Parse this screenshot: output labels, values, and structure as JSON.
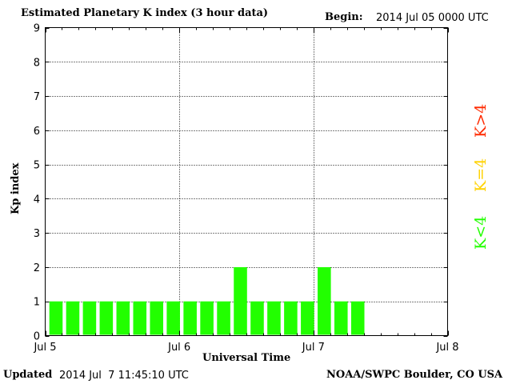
{
  "header": {
    "title": "Estimated Planetary K index (3 hour data)",
    "begin_label": "Begin:",
    "begin_value": "2014 Jul 05 0000 UTC"
  },
  "footer": {
    "updated_label": "Updated",
    "updated_value": "2014 Jul  7 11:45:10 UTC",
    "credit": "NOAA/SWPC Boulder, CO USA"
  },
  "legend": {
    "greater": {
      "label": "K>4",
      "color": "#ff2a00"
    },
    "equal": {
      "label": "K=4",
      "color": "#ffd200"
    },
    "less": {
      "label": "K<4",
      "color": "#22ff00"
    }
  },
  "chart_data": {
    "type": "bar",
    "title": "Estimated Planetary K index (3 hour data)",
    "xlabel": "Universal Time",
    "ylabel": "Kp index",
    "ylim": [
      0,
      9
    ],
    "yticks": [
      0,
      1,
      2,
      3,
      4,
      5,
      6,
      7,
      8,
      9
    ],
    "xticks": [
      "Jul 5",
      "Jul 6",
      "Jul 7",
      "Jul 8"
    ],
    "bar_interval_hours": 3,
    "grid": true,
    "bar_color": "#22ff00",
    "series": [
      {
        "values": [
          1,
          1,
          1,
          1,
          1,
          1,
          1,
          1,
          1,
          1,
          1,
          2,
          1,
          1,
          1,
          1,
          2,
          1,
          1
        ]
      }
    ]
  }
}
